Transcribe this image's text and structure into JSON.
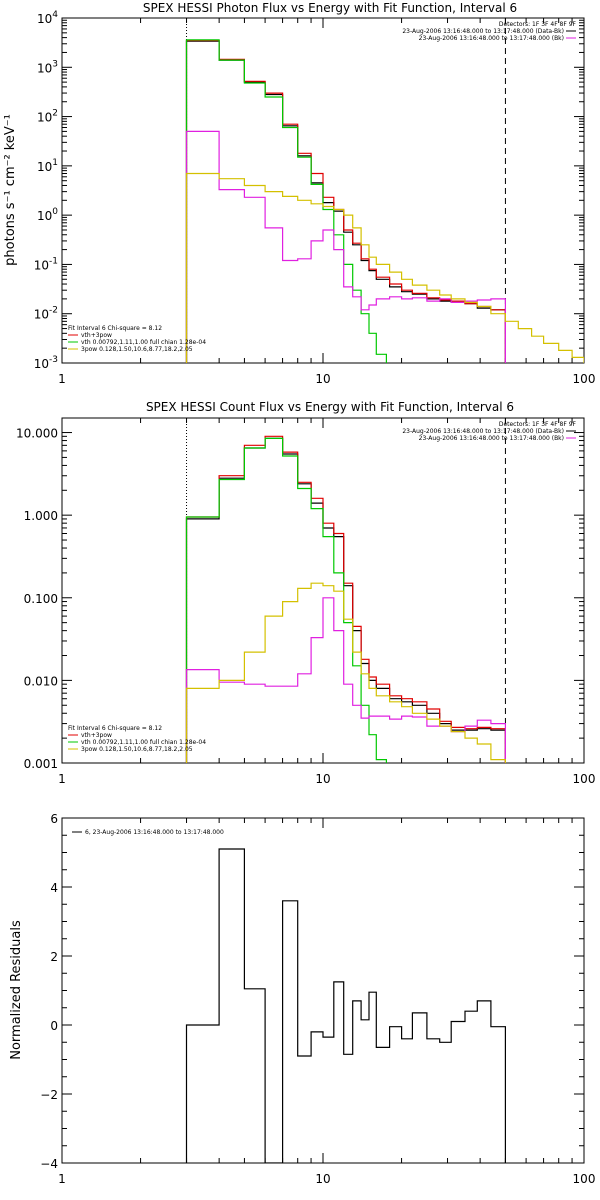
{
  "chart_data": [
    {
      "type": "line",
      "step": true,
      "title": "SPEX HESSI Photon Flux vs Energy with Fit Function, Interval 6",
      "ylabel": "photons s⁻¹ cm⁻² keV⁻¹",
      "xlim": [
        1,
        100
      ],
      "ylim": [
        0.001,
        10000
      ],
      "xscale": "log",
      "yscale": "log",
      "xticks": [
        {
          "v": 1,
          "label": "1"
        },
        {
          "v": 10,
          "label": "10"
        },
        {
          "v": 100,
          "label": "100"
        }
      ],
      "yticks": [
        {
          "v": 0.001,
          "base": "10",
          "exp": "-3"
        },
        {
          "v": 0.01,
          "base": "10",
          "exp": "-2"
        },
        {
          "v": 0.1,
          "base": "10",
          "exp": "-1"
        },
        {
          "v": 1,
          "base": "10",
          "exp": "0"
        },
        {
          "v": 10,
          "base": "10",
          "exp": "1"
        },
        {
          "v": 100,
          "base": "10",
          "exp": "2"
        },
        {
          "v": 1000,
          "base": "10",
          "exp": "3"
        },
        {
          "v": 10000,
          "base": "10",
          "exp": "4"
        }
      ],
      "vlines": [
        {
          "x": 3,
          "style": "dotted"
        },
        {
          "x": 50,
          "style": "dashed"
        }
      ],
      "legend_top_right": {
        "header": "Detectors: 1F 3F 4F 8F 9F",
        "entries": [
          {
            "text": "23-Aug-2006 13:16:48.000 to 13:17:48.000 (Data-Bk)",
            "color": "#000000"
          },
          {
            "text": "23-Aug-2006 13:16:48.000 to 13:17:48.000 (Bk)",
            "color": "#e020e0"
          }
        ]
      },
      "legend_bottom_left": {
        "header": "Fit Interval 6   Chi-square = 8.12",
        "entries": [
          {
            "text": "vth+3pow",
            "color": "#e00000"
          },
          {
            "text": "vth 0.00792,1.11,1.00  full chian 1.28e-04",
            "color": "#00c800"
          },
          {
            "text": "3pow 0.128,1.50,10.6,8.77,18.2,2.05",
            "color": "#d4c000"
          }
        ]
      },
      "series": [
        {
          "color": "#000000",
          "edges": [
            3,
            4,
            5,
            6,
            7,
            8,
            9,
            10,
            11,
            12,
            13,
            14,
            15,
            16,
            18,
            20,
            22,
            25,
            28,
            31,
            35,
            39,
            44,
            50
          ],
          "values": [
            3400,
            1400,
            500,
            280,
            65,
            16,
            4.5,
            1.8,
            1.2,
            0.45,
            0.25,
            0.12,
            0.075,
            0.05,
            0.035,
            0.028,
            0.025,
            0.02,
            0.018,
            0.017,
            0.016,
            0.013,
            0.012
          ]
        },
        {
          "color": "#e00000",
          "edges": [
            3,
            4,
            5,
            6,
            7,
            8,
            9,
            10,
            11,
            12,
            13,
            14,
            15,
            16,
            18,
            20,
            22,
            25,
            28,
            31,
            35,
            39,
            44,
            50
          ],
          "values": [
            3500,
            1450,
            520,
            300,
            70,
            18,
            7,
            2.3,
            1.3,
            0.5,
            0.27,
            0.13,
            0.08,
            0.055,
            0.04,
            0.03,
            0.026,
            0.021,
            0.019,
            0.018,
            0.016,
            0.014,
            0.012
          ]
        },
        {
          "color": "#00c800",
          "edges": [
            3,
            4,
            5,
            6,
            7,
            8,
            9,
            10,
            11,
            12,
            13,
            14,
            15,
            16,
            17.5
          ],
          "values": [
            3600,
            1400,
            480,
            250,
            60,
            15,
            4.2,
            1.3,
            0.4,
            0.1,
            0.03,
            0.01,
            0.004,
            0.0015
          ]
        },
        {
          "color": "#e020e0",
          "edges": [
            3,
            4,
            5,
            6,
            7,
            8,
            9,
            10,
            11,
            12,
            13,
            14,
            15,
            16,
            18,
            20,
            22,
            25,
            28,
            31,
            35,
            39,
            44,
            50
          ],
          "values": [
            50,
            3.3,
            2.3,
            0.55,
            0.12,
            0.13,
            0.3,
            0.5,
            0.2,
            0.035,
            0.022,
            0.012,
            0.015,
            0.02,
            0.022,
            0.02,
            0.021,
            0.018,
            0.02,
            0.017,
            0.018,
            0.019,
            0.02
          ]
        },
        {
          "color": "#d4c000",
          "edges": [
            3,
            4,
            5,
            6,
            7,
            8,
            9,
            10,
            11,
            12,
            13,
            14,
            15,
            16,
            18,
            20,
            22,
            25,
            28,
            31,
            35,
            39,
            44,
            50,
            56,
            63,
            70,
            80,
            90,
            100
          ],
          "values": [
            7,
            5.5,
            4,
            3,
            2.4,
            2,
            1.7,
            1.5,
            1.3,
            1,
            0.55,
            0.25,
            0.14,
            0.1,
            0.07,
            0.05,
            0.038,
            0.03,
            0.024,
            0.02,
            0.017,
            0.014,
            0.01,
            0.007,
            0.005,
            0.0035,
            0.0025,
            0.0018,
            0.0013
          ]
        }
      ]
    },
    {
      "type": "line",
      "step": true,
      "title": "SPEX HESSI Count Flux vs Energy with Fit Function, Interval 6",
      "xlim": [
        1,
        100
      ],
      "ylim": [
        0.001,
        15
      ],
      "xscale": "log",
      "yscale": "log",
      "xticks": [
        {
          "v": 1,
          "label": "1"
        },
        {
          "v": 10,
          "label": "10"
        },
        {
          "v": 100,
          "label": "100"
        }
      ],
      "yticks": [
        {
          "v": 0.001,
          "label": "0.001"
        },
        {
          "v": 0.01,
          "label": "0.010"
        },
        {
          "v": 0.1,
          "label": "0.100"
        },
        {
          "v": 1,
          "label": "1.000"
        },
        {
          "v": 10,
          "label": "10.000"
        }
      ],
      "vlines": [
        {
          "x": 3,
          "style": "dotted"
        },
        {
          "x": 50,
          "style": "dashed"
        }
      ],
      "legend_top_right": {
        "header": "Detectors: 1F 3F 4F 8F 9F",
        "entries": [
          {
            "text": "23-Aug-2006 13:16:48.000 to 13:17:48.000 (Data-Bk)",
            "color": "#000000"
          },
          {
            "text": "23-Aug-2006 13:16:48.000 to 13:17:48.000 (Bk)",
            "color": "#e020e0"
          }
        ]
      },
      "legend_bottom_left": {
        "header": "Fit Interval 6   Chi-square = 8.12",
        "entries": [
          {
            "text": "vth+3pow",
            "color": "#e00000"
          },
          {
            "text": "vth 0.00792,1.11,1.00  full chian 1.28e-04",
            "color": "#00c800"
          },
          {
            "text": "3pow 0.128,1.50,10.6,8.77,18.2,2.05",
            "color": "#d4c000"
          }
        ]
      },
      "series": [
        {
          "color": "#000000",
          "edges": [
            3,
            4,
            5,
            6,
            7,
            8,
            9,
            10,
            11,
            12,
            13,
            14,
            15,
            16,
            18,
            20,
            22,
            25,
            28,
            31,
            35,
            39,
            44,
            50
          ],
          "values": [
            0.9,
            2.8,
            6.5,
            8.5,
            5.5,
            2.4,
            1.4,
            0.7,
            0.55,
            0.14,
            0.04,
            0.016,
            0.01,
            0.008,
            0.006,
            0.0055,
            0.005,
            0.004,
            0.003,
            0.0025,
            0.0025,
            0.0026,
            0.0025
          ]
        },
        {
          "color": "#e00000",
          "edges": [
            3,
            4,
            5,
            6,
            7,
            8,
            9,
            10,
            11,
            12,
            13,
            14,
            15,
            16,
            18,
            20,
            22,
            25,
            28,
            31,
            35,
            39,
            44,
            50
          ],
          "values": [
            0.95,
            3,
            7,
            9,
            5.8,
            2.5,
            1.6,
            0.8,
            0.6,
            0.15,
            0.045,
            0.018,
            0.011,
            0.009,
            0.0065,
            0.006,
            0.0055,
            0.0045,
            0.0032,
            0.0027,
            0.0026,
            0.0027,
            0.0026
          ]
        },
        {
          "color": "#00c800",
          "edges": [
            3,
            4,
            5,
            6,
            7,
            8,
            9,
            10,
            11,
            12,
            13,
            14,
            15,
            16,
            17.5
          ],
          "values": [
            0.95,
            2.7,
            6.5,
            8.5,
            5.2,
            2.1,
            1.2,
            0.55,
            0.2,
            0.05,
            0.015,
            0.005,
            0.0022,
            0.0011
          ]
        },
        {
          "color": "#e020e0",
          "edges": [
            3,
            4,
            5,
            6,
            7,
            8,
            9,
            10,
            11,
            12,
            13,
            14,
            15,
            16,
            18,
            20,
            22,
            25,
            28,
            31,
            35,
            39,
            44,
            50
          ],
          "values": [
            0.0135,
            0.0095,
            0.009,
            0.0085,
            0.0085,
            0.012,
            0.033,
            0.1,
            0.04,
            0.009,
            0.005,
            0.0035,
            0.0037,
            0.0037,
            0.0034,
            0.0037,
            0.0036,
            0.0028,
            0.0028,
            0.0024,
            0.0028,
            0.0033,
            0.003
          ]
        },
        {
          "color": "#d4c000",
          "edges": [
            3,
            4,
            5,
            6,
            7,
            8,
            9,
            10,
            11,
            12,
            13,
            14,
            15,
            16,
            18,
            20,
            22,
            25,
            28,
            31,
            35,
            39,
            44,
            50,
            56
          ],
          "values": [
            0.008,
            0.01,
            0.022,
            0.06,
            0.09,
            0.13,
            0.15,
            0.14,
            0.12,
            0.055,
            0.022,
            0.012,
            0.008,
            0.0065,
            0.0055,
            0.0048,
            0.004,
            0.0034,
            0.0028,
            0.0024,
            0.002,
            0.0017,
            0.0011,
            0.0009
          ]
        }
      ]
    },
    {
      "type": "line",
      "step": true,
      "ylabel": "Normalized Residuals",
      "xlim": [
        1,
        100
      ],
      "ylim": [
        -4,
        6
      ],
      "xscale": "log",
      "yscale": "linear",
      "xticks": [
        {
          "v": 1,
          "label": "1"
        },
        {
          "v": 10,
          "label": "10"
        },
        {
          "v": 100,
          "label": "100"
        }
      ],
      "yticks": [
        {
          "v": -4,
          "label": "−4"
        },
        {
          "v": -2,
          "label": "−2"
        },
        {
          "v": 0,
          "label": "0"
        },
        {
          "v": 2,
          "label": "2"
        },
        {
          "v": 4,
          "label": "4"
        },
        {
          "v": 6,
          "label": "6"
        }
      ],
      "legend_top_left": {
        "entries": [
          {
            "text": "6, 23-Aug-2006 13:16:48.000 to 13:17:48.000",
            "color": "#000000"
          }
        ]
      },
      "series": [
        {
          "color": "#000000",
          "edges": [
            3,
            4,
            5,
            6,
            7,
            8,
            9,
            10,
            11,
            12,
            13,
            14,
            15,
            16,
            18,
            20,
            22,
            25,
            28,
            31,
            35,
            39,
            44,
            50
          ],
          "values": [
            0,
            5.1,
            1.05,
            -4,
            3.6,
            -0.9,
            -0.2,
            -0.35,
            1.25,
            -0.85,
            0.7,
            0.15,
            0.95,
            -0.65,
            -0.05,
            -0.4,
            0.35,
            -0.4,
            -0.5,
            0.1,
            0.4,
            0.7,
            -0.05
          ]
        }
      ]
    }
  ]
}
